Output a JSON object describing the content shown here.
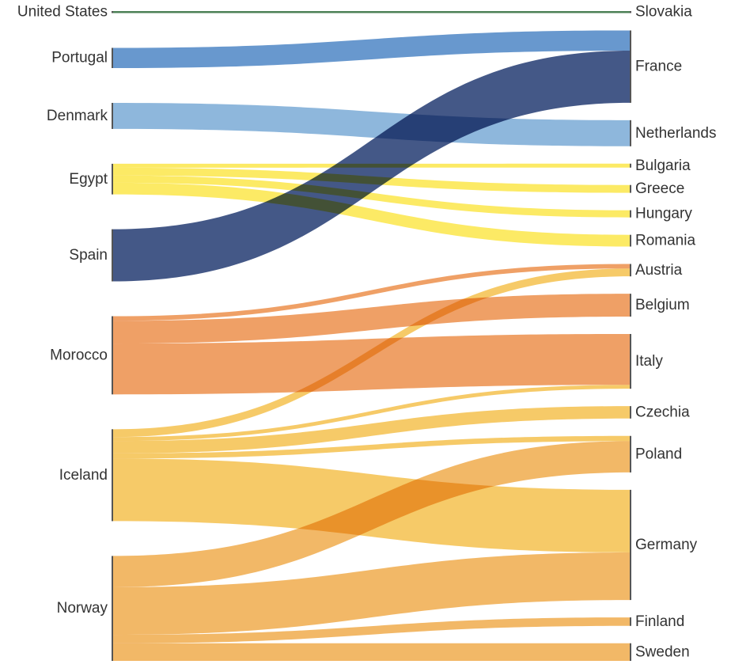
{
  "chart_data": {
    "type": "sankey",
    "sources": [
      {
        "name": "United States",
        "color": "#2e6b3a"
      },
      {
        "name": "Portugal",
        "color": "#4e86c6"
      },
      {
        "name": "Denmark",
        "color": "#7aaad6"
      },
      {
        "name": "Egypt",
        "color": "#fbe64a"
      },
      {
        "name": "Spain",
        "color": "#233b72"
      },
      {
        "name": "Morocco",
        "color": "#ec8f4b"
      },
      {
        "name": "Iceland",
        "color": "#f5c14e"
      },
      {
        "name": "Norway",
        "color": "#f0ac4c"
      }
    ],
    "targets": [
      {
        "name": "Slovakia"
      },
      {
        "name": "France"
      },
      {
        "name": "Netherlands"
      },
      {
        "name": "Bulgaria"
      },
      {
        "name": "Greece"
      },
      {
        "name": "Hungary"
      },
      {
        "name": "Romania"
      },
      {
        "name": "Austria"
      },
      {
        "name": "Belgium"
      },
      {
        "name": "Italy"
      },
      {
        "name": "Czechia"
      },
      {
        "name": "Poland"
      },
      {
        "name": "Germany"
      },
      {
        "name": "Finland"
      },
      {
        "name": "Sweden"
      }
    ],
    "links": [
      {
        "source": "United States",
        "target": "Slovakia",
        "value": 0.3
      },
      {
        "source": "Portugal",
        "target": "France",
        "value": 3.1
      },
      {
        "source": "Denmark",
        "target": "Netherlands",
        "value": 4.0
      },
      {
        "source": "Egypt",
        "target": "Bulgaria",
        "value": 0.6
      },
      {
        "source": "Egypt",
        "target": "Greece",
        "value": 1.2
      },
      {
        "source": "Egypt",
        "target": "Hungary",
        "value": 1.1
      },
      {
        "source": "Egypt",
        "target": "Romania",
        "value": 1.8
      },
      {
        "source": "Spain",
        "target": "France",
        "value": 8.0
      },
      {
        "source": "Morocco",
        "target": "Austria",
        "value": 0.7
      },
      {
        "source": "Morocco",
        "target": "Belgium",
        "value": 3.5
      },
      {
        "source": "Morocco",
        "target": "Italy",
        "value": 7.8
      },
      {
        "source": "Iceland",
        "target": "Austria",
        "value": 1.2
      },
      {
        "source": "Iceland",
        "target": "Italy",
        "value": 0.6
      },
      {
        "source": "Iceland",
        "target": "Czechia",
        "value": 1.9
      },
      {
        "source": "Iceland",
        "target": "Poland",
        "value": 0.8
      },
      {
        "source": "Iceland",
        "target": "Germany",
        "value": 9.6
      },
      {
        "source": "Norway",
        "target": "Poland",
        "value": 4.8
      },
      {
        "source": "Norway",
        "target": "Germany",
        "value": 7.3
      },
      {
        "source": "Norway",
        "target": "Finland",
        "value": 1.3
      },
      {
        "source": "Norway",
        "target": "Sweden",
        "value": 2.7
      }
    ]
  }
}
